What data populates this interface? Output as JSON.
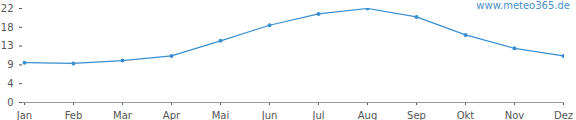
{
  "chart_data": {
    "type": "line",
    "annotation": "www.meteo365.de",
    "categories": [
      "Jan",
      "Feb",
      "Mar",
      "Apr",
      "Mai",
      "Jun",
      "Jul",
      "Aug",
      "Sep",
      "Okt",
      "Nov",
      "Dez"
    ],
    "values": [
      9.5,
      9.3,
      10.0,
      11.1,
      14.7,
      18.4,
      21.1,
      22.4,
      20.4,
      16.1,
      12.9,
      11.1
    ],
    "color": "#3a8fd0",
    "marker": "circle",
    "ylim": [
      0,
      22.4
    ],
    "yticks": [
      0,
      {
        "value": 4.48,
        "label": "4"
      },
      {
        "value": 8.96,
        "label": "9"
      },
      {
        "value": 13.44,
        "label": "13"
      },
      {
        "value": 17.92,
        "label": "18"
      },
      {
        "value": 22.4,
        "label": "22"
      }
    ],
    "grid": false
  }
}
